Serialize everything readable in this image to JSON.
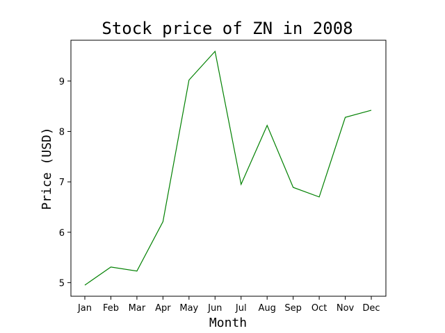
{
  "chart_data": {
    "type": "line",
    "title": "Stock price of ZN in 2008",
    "xlabel": "Month",
    "ylabel": "Price (USD)",
    "categories": [
      "Jan",
      "Feb",
      "Mar",
      "Apr",
      "May",
      "Jun",
      "Jul",
      "Aug",
      "Sep",
      "Oct",
      "Nov",
      "Dec"
    ],
    "series": [
      {
        "values": [
          4.95,
          5.31,
          5.23,
          6.21,
          9.02,
          9.59,
          6.95,
          8.12,
          6.89,
          6.7,
          8.28,
          8.42
        ],
        "color": "#008000"
      }
    ],
    "yticks": [
      5,
      6,
      7,
      8,
      9
    ],
    "ylim": [
      4.73,
      9.81
    ],
    "grid": false,
    "legend": "none"
  }
}
